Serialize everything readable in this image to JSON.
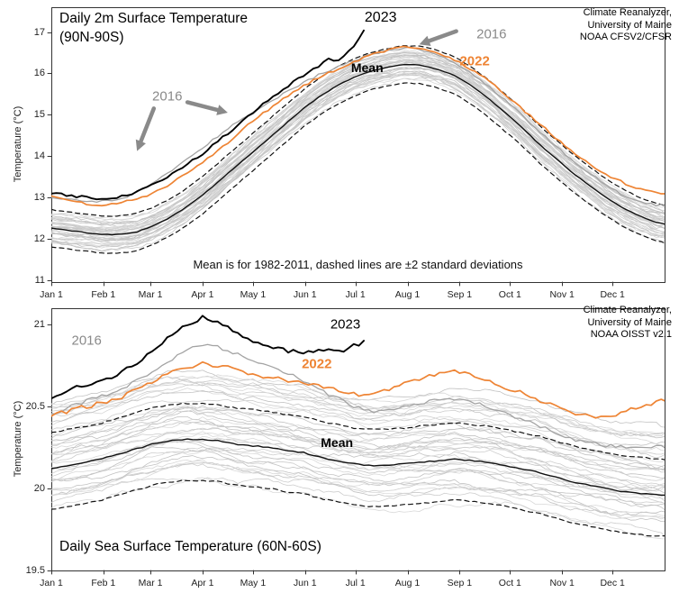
{
  "page": {
    "background": "#ffffff"
  },
  "colors": {
    "line_2022": "#ee8434",
    "line_2023": "#000000",
    "line_2016": "#a3a3a3",
    "mean": "#111111",
    "ensemble": "#cfcfcf",
    "arrow": "#8a8a8a",
    "frame": "#333333"
  },
  "chart_data": [
    {
      "type": "line",
      "title": "Daily 2m Surface Temperature (90N-90S)",
      "title_lines": [
        "Daily 2m Surface Temperature",
        "(90N-90S)"
      ],
      "attribution": [
        "Climate Reanalyzer,",
        "University of Maine",
        "NOAA CFSV2/CFSR"
      ],
      "caption": "Mean is for 1982-2011, dashed lines are ±2 standard deviations",
      "ylabel": "Temperature (°C)",
      "xlabel": "",
      "ylim": [
        10.95,
        17.6
      ],
      "yticks": [
        11,
        12,
        13,
        14,
        15,
        16,
        17
      ],
      "ytick_labels": [
        "11",
        "12",
        "13",
        "14",
        "15",
        "16",
        "17"
      ],
      "xlim": [
        0,
        365
      ],
      "xtick_labels": [
        "Jan 1",
        "Feb 1",
        "Mar 1",
        "Apr 1",
        "May 1",
        "Jun 1",
        "Jul 1",
        "Aug 1",
        "Sep 1",
        "Oct 1",
        "Nov 1",
        "Dec 1"
      ],
      "x_days": [
        0,
        10,
        20,
        30,
        40,
        50,
        60,
        70,
        80,
        90,
        100,
        110,
        120,
        130,
        140,
        150,
        160,
        170,
        180,
        190,
        200,
        210,
        220,
        230,
        240,
        250,
        260,
        270,
        280,
        290,
        300,
        310,
        320,
        330,
        340,
        350,
        360,
        365
      ],
      "series": [
        {
          "name": "Mean (1982-2011)",
          "role": "mean",
          "values": [
            12.25,
            12.2,
            12.15,
            12.1,
            12.1,
            12.15,
            12.3,
            12.5,
            12.75,
            13.05,
            13.4,
            13.75,
            14.1,
            14.45,
            14.8,
            15.15,
            15.45,
            15.7,
            15.9,
            16.05,
            16.15,
            16.22,
            16.2,
            16.1,
            15.95,
            15.7,
            15.4,
            15.05,
            14.7,
            14.3,
            13.95,
            13.6,
            13.3,
            13.0,
            12.75,
            12.55,
            12.4,
            12.35
          ]
        },
        {
          "name": "+2 std dev",
          "role": "sigma",
          "values": [
            12.7,
            12.65,
            12.6,
            12.55,
            12.55,
            12.6,
            12.75,
            12.95,
            13.2,
            13.5,
            13.85,
            14.2,
            14.55,
            14.9,
            15.25,
            15.6,
            15.9,
            16.15,
            16.35,
            16.5,
            16.6,
            16.67,
            16.65,
            16.55,
            16.4,
            16.15,
            15.85,
            15.5,
            15.15,
            14.75,
            14.4,
            14.05,
            13.75,
            13.45,
            13.2,
            13.0,
            12.85,
            12.8
          ]
        },
        {
          "name": "-2 std dev",
          "role": "sigma",
          "values": [
            11.8,
            11.75,
            11.7,
            11.65,
            11.65,
            11.7,
            11.85,
            12.05,
            12.3,
            12.6,
            12.95,
            13.3,
            13.65,
            14.0,
            14.35,
            14.7,
            15.0,
            15.25,
            15.45,
            15.6,
            15.7,
            15.77,
            15.75,
            15.65,
            15.5,
            15.25,
            14.95,
            14.6,
            14.25,
            13.85,
            13.5,
            13.15,
            12.85,
            12.55,
            12.3,
            12.1,
            11.95,
            11.9
          ]
        },
        {
          "name": "2016",
          "role": "y2016",
          "values": [
            13.0,
            12.95,
            12.9,
            12.9,
            12.95,
            13.1,
            13.35,
            13.6,
            13.9,
            14.2,
            14.5,
            14.8,
            15.05,
            15.3,
            15.55,
            15.78,
            15.98,
            16.15,
            16.3,
            16.45,
            16.55,
            16.62,
            16.58,
            16.45,
            16.25,
            16.0,
            15.7,
            15.35,
            15.0,
            14.6,
            14.25,
            13.9,
            13.6,
            13.3,
            13.05,
            12.9,
            12.82,
            12.8
          ]
        },
        {
          "name": "2022",
          "role": "y2022",
          "values": [
            13.05,
            12.95,
            12.85,
            12.8,
            12.85,
            12.95,
            13.1,
            13.3,
            13.55,
            13.85,
            14.15,
            14.5,
            14.85,
            15.15,
            15.45,
            15.7,
            15.92,
            16.1,
            16.28,
            16.45,
            16.55,
            16.65,
            16.6,
            16.5,
            16.32,
            16.1,
            15.82,
            15.5,
            15.15,
            14.8,
            14.45,
            14.12,
            13.82,
            13.56,
            13.36,
            13.2,
            13.1,
            13.08
          ]
        },
        {
          "name": "2023",
          "role": "y2023",
          "x": [
            0,
            10,
            20,
            30,
            40,
            50,
            60,
            70,
            80,
            90,
            100,
            110,
            120,
            130,
            140,
            150,
            160,
            165,
            170,
            175,
            180,
            183,
            186
          ],
          "values": [
            13.12,
            13.05,
            13.0,
            12.97,
            13.0,
            13.1,
            13.3,
            13.52,
            13.78,
            14.05,
            14.38,
            14.72,
            15.05,
            15.38,
            15.68,
            15.95,
            16.2,
            16.33,
            16.27,
            16.45,
            16.65,
            16.82,
            17.05
          ]
        }
      ],
      "ensemble": {
        "name": "individual years (gray)",
        "count": 40,
        "offset_min": -0.42,
        "offset_max": 0.42,
        "walk": 0.09,
        "jitter": 0.05
      },
      "annotations": [
        {
          "text": "2023",
          "day": 196,
          "value": 17.33,
          "color": "#000000",
          "size": 16,
          "bold": false
        },
        {
          "text": "2016",
          "day": 262,
          "value": 16.95,
          "color": "#8a8a8a",
          "size": 15,
          "bold": false
        },
        {
          "text": "2022",
          "day": 252,
          "value": 16.3,
          "color": "#ee8434",
          "size": 15,
          "bold": true
        },
        {
          "text": "Mean",
          "day": 188,
          "value": 16.15,
          "color": "#000000",
          "size": 14,
          "bold": true
        },
        {
          "text": "2016",
          "day": 69,
          "value": 15.45,
          "color": "#8a8a8a",
          "size": 15,
          "bold": false
        }
      ],
      "arrows": [
        {
          "from": [
            241,
            17.02
          ],
          "to": [
            219,
            16.7
          ]
        },
        {
          "from": [
            61,
            15.15
          ],
          "to": [
            51,
            14.12
          ]
        },
        {
          "from": [
            81,
            15.3
          ],
          "to": [
            105,
            15.05
          ]
        }
      ]
    },
    {
      "type": "line",
      "title": "Daily Sea Surface Temperature (60N-60S)",
      "title_lines": [
        "Daily Sea Surface Temperature (60N-60S)"
      ],
      "attribution": [
        "Climate Reanalyzer,",
        "University of Maine",
        "NOAA OISST v2.1"
      ],
      "caption": "",
      "ylabel": "Temperature (°C)",
      "xlabel": "",
      "ylim": [
        19.5,
        21.1
      ],
      "yticks": [
        19.5,
        20,
        20.5,
        21
      ],
      "ytick_labels": [
        "19.5",
        "20",
        "20.5",
        "21"
      ],
      "xlim": [
        0,
        365
      ],
      "xtick_labels": [
        "Jan 1",
        "Feb 1",
        "Mar 1",
        "Apr 1",
        "May 1",
        "Jun 1",
        "Jul 1",
        "Aug 1",
        "Sep 1",
        "Oct 1",
        "Nov 1",
        "Dec 1"
      ],
      "x_days": [
        0,
        10,
        20,
        30,
        40,
        50,
        60,
        70,
        80,
        90,
        100,
        110,
        120,
        130,
        140,
        150,
        160,
        170,
        180,
        190,
        200,
        210,
        220,
        230,
        240,
        250,
        260,
        270,
        280,
        290,
        300,
        310,
        320,
        330,
        340,
        350,
        360,
        365
      ],
      "series": [
        {
          "name": "Mean (1982-2011)",
          "role": "mean",
          "values": [
            20.12,
            20.14,
            20.16,
            20.18,
            20.21,
            20.24,
            20.27,
            20.29,
            20.3,
            20.3,
            20.29,
            20.27,
            20.26,
            20.25,
            20.23,
            20.22,
            20.19,
            20.17,
            20.15,
            20.14,
            20.14,
            20.15,
            20.16,
            20.17,
            20.18,
            20.17,
            20.16,
            20.14,
            20.12,
            20.1,
            20.07,
            20.04,
            20.02,
            20.0,
            19.98,
            19.97,
            19.96,
            19.96
          ]
        },
        {
          "name": "+2 std dev",
          "role": "sigma",
          "values": [
            20.34,
            20.36,
            20.38,
            20.4,
            20.43,
            20.46,
            20.49,
            20.51,
            20.52,
            20.52,
            20.51,
            20.49,
            20.48,
            20.47,
            20.45,
            20.44,
            20.41,
            20.39,
            20.37,
            20.36,
            20.36,
            20.37,
            20.38,
            20.39,
            20.4,
            20.39,
            20.38,
            20.36,
            20.34,
            20.32,
            20.29,
            20.26,
            20.24,
            20.22,
            20.2,
            20.19,
            20.18,
            20.18
          ]
        },
        {
          "name": "-2 std dev",
          "role": "sigma",
          "values": [
            19.87,
            19.89,
            19.91,
            19.93,
            19.96,
            19.99,
            20.02,
            20.04,
            20.05,
            20.05,
            20.04,
            20.02,
            20.01,
            20.0,
            19.98,
            19.97,
            19.94,
            19.92,
            19.9,
            19.89,
            19.89,
            19.9,
            19.91,
            19.92,
            19.93,
            19.92,
            19.91,
            19.89,
            19.87,
            19.85,
            19.82,
            19.79,
            19.77,
            19.75,
            19.73,
            19.72,
            19.71,
            19.71
          ]
        },
        {
          "name": "2016",
          "role": "y2016",
          "values": [
            20.45,
            20.5,
            20.53,
            20.56,
            20.6,
            20.65,
            20.72,
            20.78,
            20.84,
            20.88,
            20.86,
            20.82,
            20.78,
            20.74,
            20.7,
            20.66,
            20.6,
            20.55,
            20.5,
            20.47,
            20.48,
            20.5,
            20.52,
            20.54,
            20.55,
            20.53,
            20.5,
            20.46,
            20.42,
            20.38,
            20.34,
            20.3,
            20.28,
            20.26,
            20.25,
            20.25,
            20.26,
            20.26
          ]
        },
        {
          "name": "2022",
          "role": "y2022",
          "values": [
            20.45,
            20.47,
            20.5,
            20.52,
            20.55,
            20.6,
            20.65,
            20.7,
            20.74,
            20.76,
            20.75,
            20.72,
            20.7,
            20.68,
            20.66,
            20.64,
            20.62,
            20.6,
            20.58,
            20.56,
            20.6,
            20.64,
            20.67,
            20.7,
            20.72,
            20.7,
            20.66,
            20.62,
            20.58,
            20.54,
            20.5,
            20.46,
            20.44,
            20.44,
            20.46,
            20.5,
            20.53,
            20.54
          ]
        },
        {
          "name": "2023",
          "role": "y2023",
          "x": [
            0,
            10,
            20,
            30,
            40,
            50,
            60,
            70,
            80,
            85,
            90,
            95,
            100,
            110,
            120,
            130,
            140,
            150,
            160,
            170,
            180,
            186
          ],
          "values": [
            20.55,
            20.6,
            20.63,
            20.65,
            20.7,
            20.76,
            20.83,
            20.92,
            20.99,
            21.02,
            21.05,
            21.03,
            21.0,
            20.96,
            20.9,
            20.86,
            20.84,
            20.83,
            20.85,
            20.83,
            20.87,
            20.89
          ]
        }
      ],
      "ensemble": {
        "name": "individual years (gray)",
        "count": 40,
        "offset_min": -0.28,
        "offset_max": 0.45,
        "walk": 0.05,
        "jitter": 0.015
      },
      "annotations": [
        {
          "text": "2016",
          "day": 21,
          "value": 20.9,
          "color": "#8a8a8a",
          "size": 15,
          "bold": false
        },
        {
          "text": "2023",
          "day": 175,
          "value": 21.0,
          "color": "#000000",
          "size": 15,
          "bold": false
        },
        {
          "text": "2022",
          "day": 158,
          "value": 20.76,
          "color": "#ee8434",
          "size": 15,
          "bold": true
        },
        {
          "text": "Mean",
          "day": 170,
          "value": 20.28,
          "color": "#000000",
          "size": 14,
          "bold": true
        }
      ],
      "arrows": []
    }
  ]
}
